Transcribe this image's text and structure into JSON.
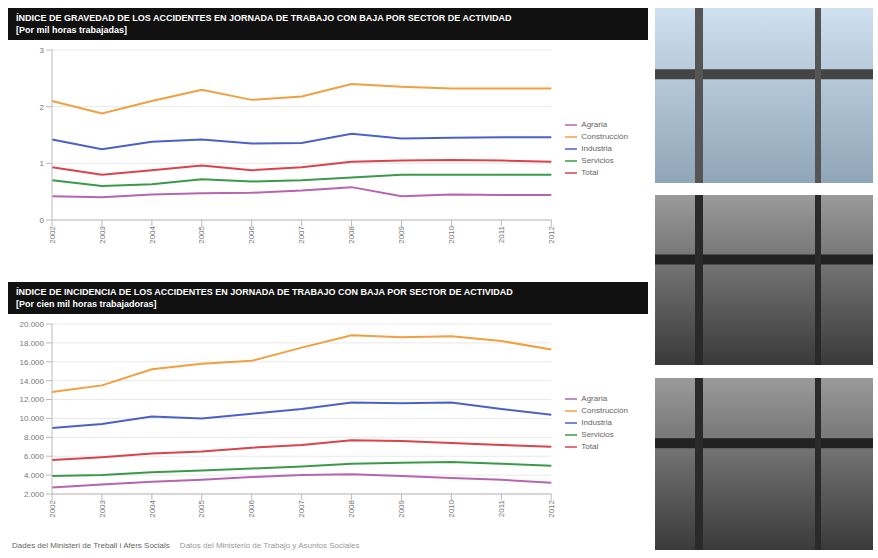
{
  "chart_data": [
    {
      "type": "line",
      "title": "ÍNDICE DE GRAVEDAD DE LOS ACCIDENTES EN JORNADA DE TRABAJO CON BAJA POR SECTOR DE ACTIVIDAD",
      "subtitle": "[Por mil horas trabajadas]",
      "categories": [
        "2002",
        "2003",
        "2004",
        "2005",
        "2006",
        "2007",
        "2008",
        "2009",
        "2010",
        "2011",
        "2012"
      ],
      "series": [
        {
          "name": "Total",
          "color": "#d9434b",
          "values": [
            0.93,
            0.8,
            0.88,
            0.96,
            0.88,
            0.93,
            1.03,
            1.05,
            1.06,
            1.05,
            1.03
          ]
        },
        {
          "name": "Agraria",
          "color": "#b565b0",
          "values": [
            0.42,
            0.4,
            0.45,
            0.47,
            0.48,
            0.52,
            0.58,
            0.42,
            0.45,
            0.44,
            0.44
          ]
        },
        {
          "name": "Industria",
          "color": "#4a62c8",
          "values": [
            1.42,
            1.25,
            1.38,
            1.42,
            1.35,
            1.36,
            1.52,
            1.44,
            1.45,
            1.46,
            1.46
          ]
        },
        {
          "name": "Construcción",
          "color": "#f0a040",
          "values": [
            2.1,
            1.88,
            2.1,
            2.3,
            2.12,
            2.18,
            2.4,
            2.35,
            2.32,
            2.32,
            2.32
          ]
        },
        {
          "name": "Servicios",
          "color": "#3a9a4a",
          "values": [
            0.7,
            0.6,
            0.63,
            0.72,
            0.68,
            0.7,
            0.75,
            0.8,
            0.8,
            0.8,
            0.8
          ]
        }
      ],
      "ylim": [
        0,
        3
      ],
      "yticks": [
        0,
        1,
        2,
        3
      ],
      "grid": true,
      "legend": "right"
    },
    {
      "type": "line",
      "title": "ÍNDICE DE INCIDENCIA DE LOS ACCIDENTES EN JORNADA DE TRABAJO CON BAJA POR SECTOR DE ACTIVIDAD",
      "subtitle": "[Por cien mil horas trabajadoras]",
      "categories": [
        "2002",
        "2003",
        "2004",
        "2005",
        "2006",
        "2007",
        "2008",
        "2009",
        "2010",
        "2011",
        "2012"
      ],
      "series": [
        {
          "name": "Total",
          "color": "#d9434b",
          "values": [
            5600,
            5900,
            6300,
            6500,
            6900,
            7200,
            7700,
            7600,
            7400,
            7200,
            7000
          ]
        },
        {
          "name": "Agraria",
          "color": "#b565b0",
          "values": [
            2700,
            3000,
            3300,
            3500,
            3800,
            4000,
            4100,
            3900,
            3700,
            3500,
            3200
          ]
        },
        {
          "name": "Industria",
          "color": "#4a62c8",
          "values": [
            9000,
            9400,
            10200,
            10000,
            10500,
            11000,
            11700,
            11600,
            11700,
            11000,
            10400
          ]
        },
        {
          "name": "Construcción",
          "color": "#f0a040",
          "values": [
            12800,
            13500,
            15200,
            15800,
            16100,
            17500,
            18800,
            18600,
            18700,
            18200,
            17300
          ]
        },
        {
          "name": "Servicios",
          "color": "#3a9a4a",
          "values": [
            3900,
            4000,
            4300,
            4500,
            4700,
            4900,
            5200,
            5300,
            5400,
            5200,
            5000
          ]
        }
      ],
      "ylim": [
        2000,
        20000
      ],
      "yticks": [
        {
          "value": 2000,
          "label": "2.000"
        },
        {
          "value": 4000,
          "label": "4.000"
        },
        {
          "value": 6000,
          "label": "6.000"
        },
        {
          "value": 8000,
          "label": "8.000"
        },
        {
          "value": 10000,
          "label": "10.000"
        },
        {
          "value": 12000,
          "label": "12.000"
        },
        {
          "value": 14000,
          "label": "14.000"
        },
        {
          "value": 16000,
          "label": "16.000"
        },
        {
          "value": 18000,
          "label": "18.000"
        },
        {
          "value": 20000,
          "label": "20.000"
        }
      ],
      "grid": true,
      "legend": "right"
    }
  ],
  "footer": [
    "Dades del Ministeri de Treball i Afers Socials",
    "Datos del Ministerio de Trabajo y Asuntos Sociales"
  ]
}
